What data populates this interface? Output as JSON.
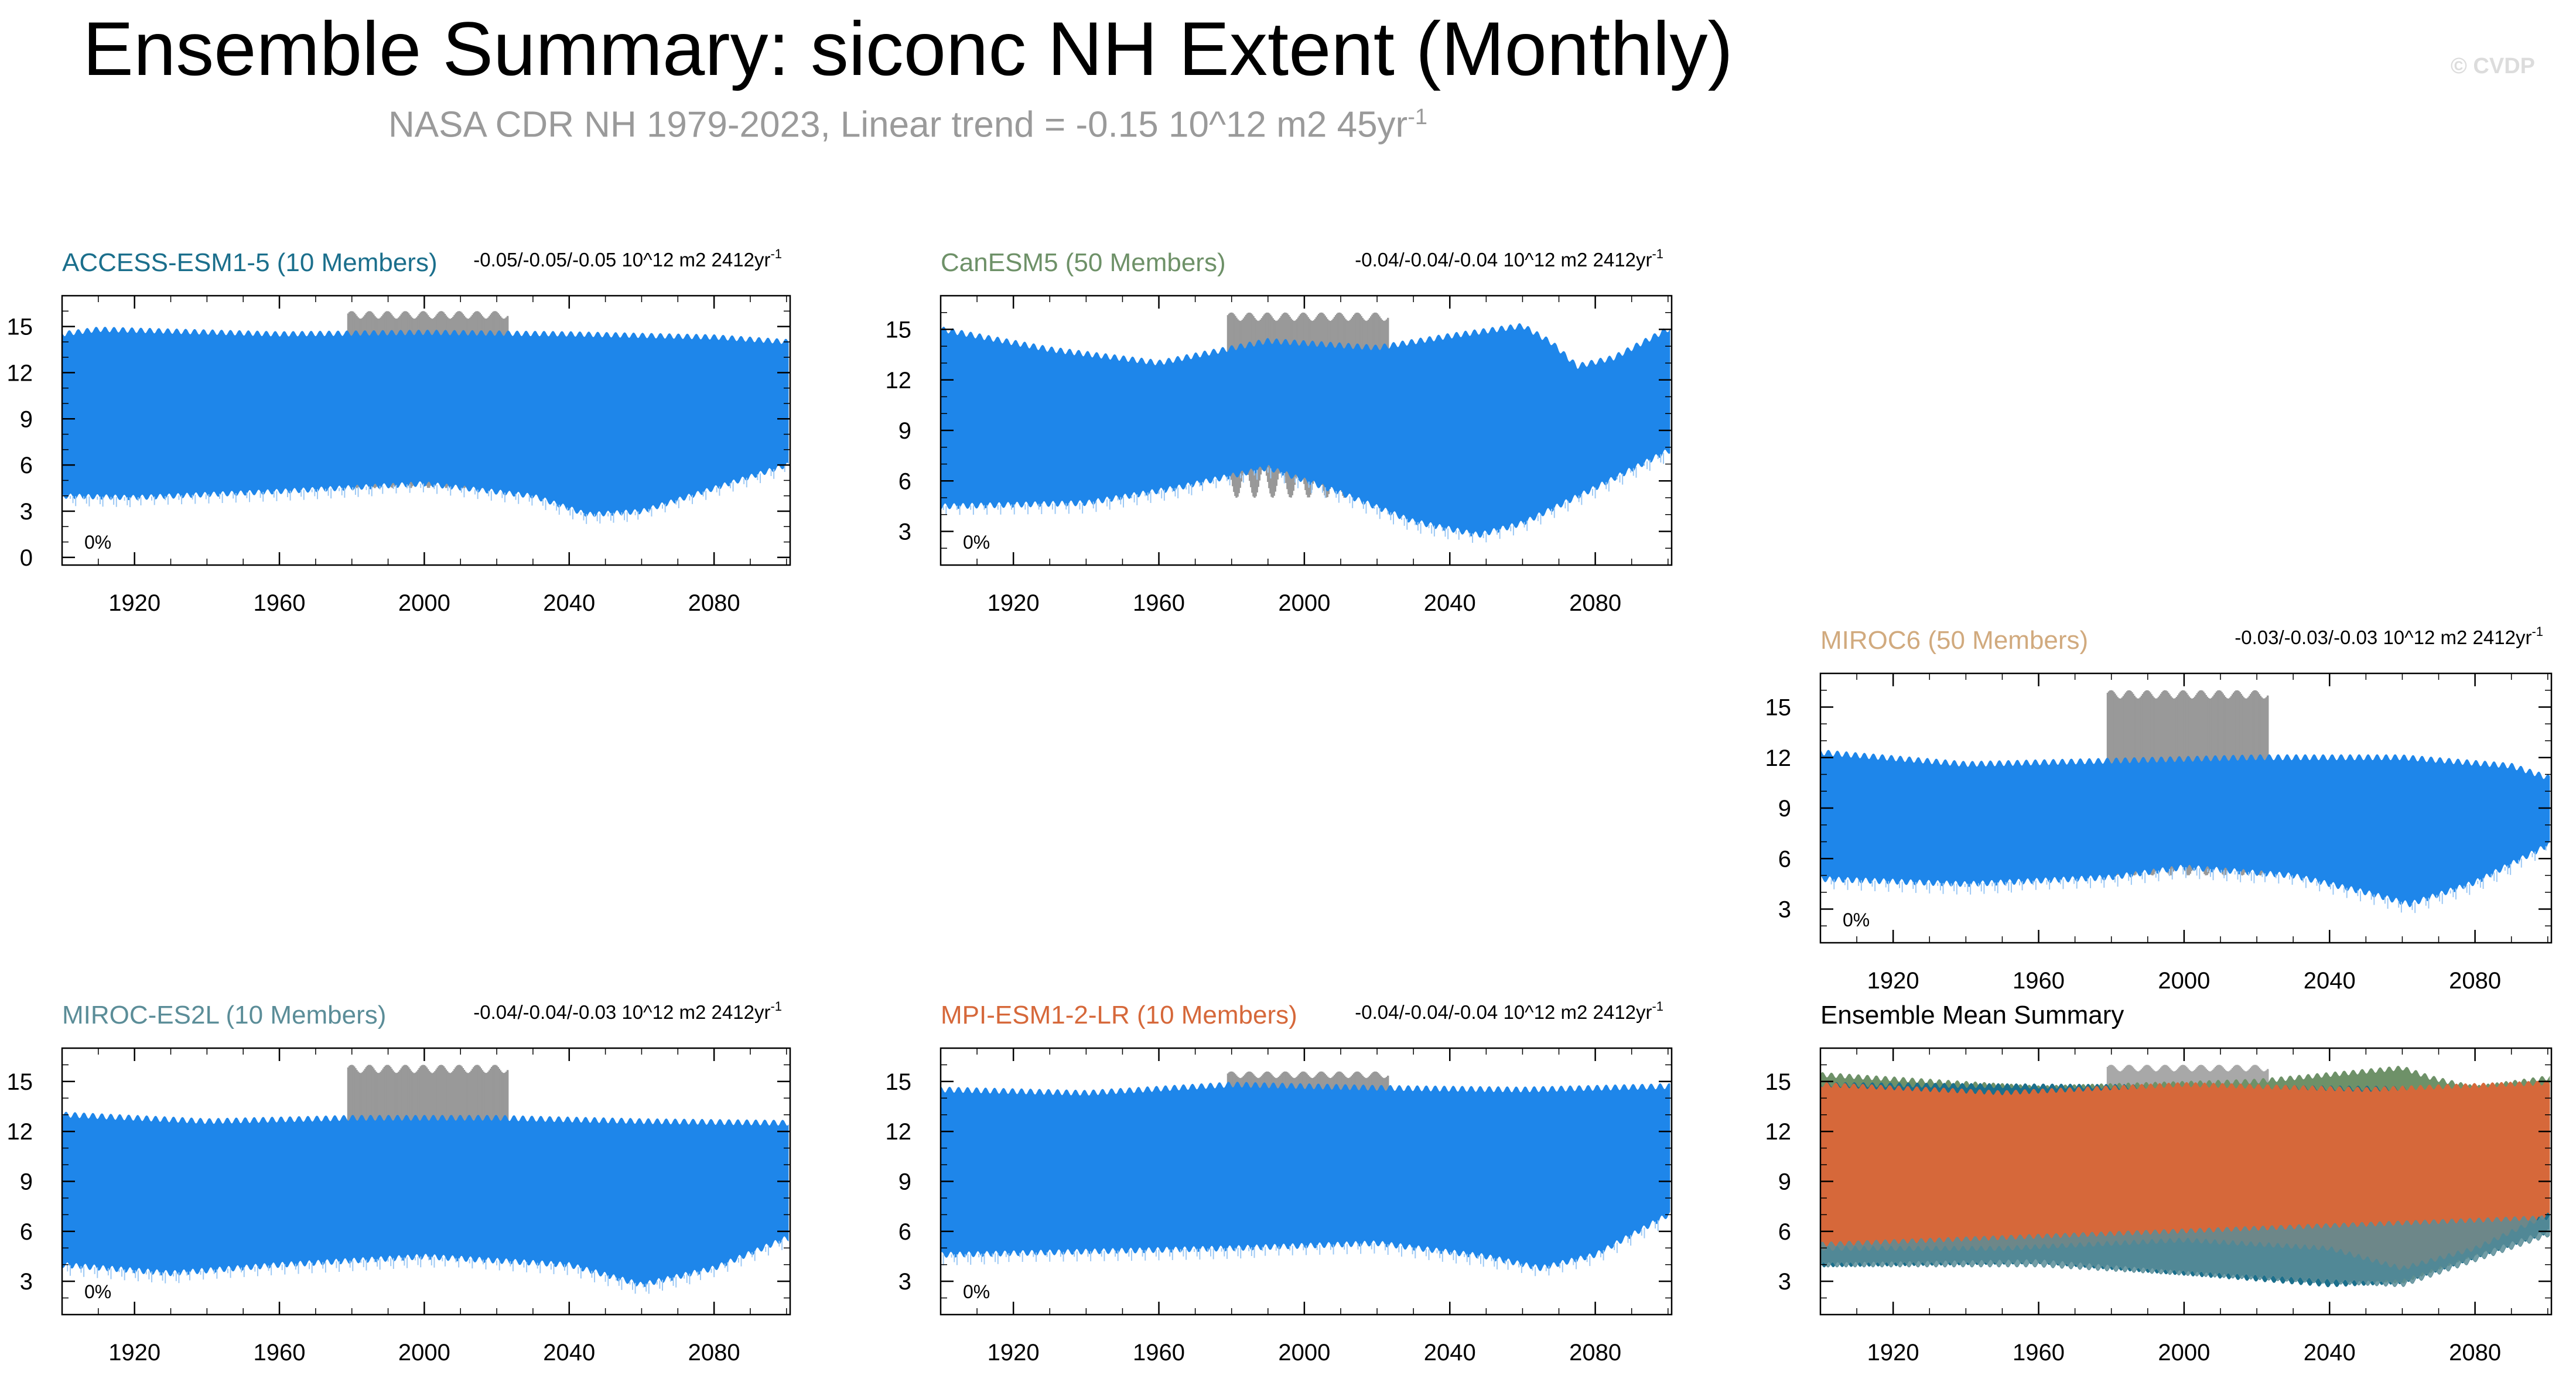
{
  "title": "Ensemble Summary: siconc NH Extent (Monthly)",
  "subtitle": "NASA CDR NH 1979-2023, Linear trend = -0.15 10^12 m2 45yr",
  "subtitle_exponent": "-1",
  "watermark": "© CVDP",
  "colors": {
    "blue": "#1e86ea",
    "obs": "#999999",
    "ACCESS-ESM1-5": "#1b6f8c",
    "CanESM5": "#6e9168",
    "MIROC6": "#d1aa7e",
    "MIROC-ES2L": "#5b8d98",
    "MPI-ESM1-2-LR": "#d6683a"
  },
  "chart_data": [
    {
      "type": "area",
      "name": "ACCESS-ESM1-5 (10 Members)",
      "title_color": "#1b6f8c",
      "trend_label": "-0.05/-0.05/-0.05 10^12 m2 2412yr",
      "trend_exponent": "-1",
      "pct_label": "0%",
      "xlim": [
        1900,
        2101
      ],
      "ylim": [
        -0.5,
        17
      ],
      "yticks": [
        0,
        3,
        6,
        9,
        12,
        15
      ],
      "xticks": [
        1920,
        1960,
        2000,
        2040,
        2080
      ],
      "obs_range": [
        1979,
        2023
      ],
      "obs_max": [
        15.5,
        16.0
      ],
      "obs_min": [
        6.0,
        4.5
      ],
      "model_max": {
        "x": [
          1900,
          1910,
          1960,
          2000,
          2040,
          2080,
          2100
        ],
        "y": [
          14.5,
          14.8,
          14.5,
          14.6,
          14.5,
          14.3,
          14.0
        ]
      },
      "model_min": {
        "x": [
          1900,
          1920,
          1960,
          2000,
          2030,
          2045,
          2060,
          2080,
          2100
        ],
        "y": [
          4.0,
          3.9,
          4.3,
          4.8,
          4.0,
          2.8,
          3.0,
          4.5,
          6.0
        ]
      }
    },
    {
      "type": "area",
      "name": "CanESM5 (50 Members)",
      "title_color": "#6e9168",
      "trend_label": "-0.04/-0.04/-0.04 10^12 m2 2412yr",
      "trend_exponent": "-1",
      "pct_label": "0%",
      "xlim": [
        1900,
        2101
      ],
      "ylim": [
        1,
        17
      ],
      "yticks": [
        3,
        6,
        9,
        12,
        15
      ],
      "xticks": [
        1920,
        1960,
        2000,
        2040,
        2080
      ],
      "obs_range": [
        1979,
        2023
      ],
      "obs_max": [
        15.5,
        16.0
      ],
      "obs_min": [
        6.8,
        5.0
      ],
      "model_max": {
        "x": [
          1900,
          1930,
          1960,
          1990,
          2020,
          2040,
          2060,
          2068,
          2075,
          2085,
          2100
        ],
        "y": [
          15.0,
          13.8,
          13.0,
          14.3,
          13.9,
          14.6,
          15.2,
          14.2,
          12.8,
          13.3,
          15.0
        ]
      },
      "model_min": {
        "x": [
          1900,
          1940,
          1965,
          1990,
          2010,
          2030,
          2048,
          2060,
          2080,
          2100
        ],
        "y": [
          4.5,
          4.7,
          5.6,
          6.8,
          5.3,
          3.6,
          2.8,
          3.5,
          5.6,
          7.8
        ]
      }
    },
    {
      "type": "area",
      "name": "MIROC6 (50 Members)",
      "title_color": "#d1aa7e",
      "trend_label": "-0.03/-0.03/-0.03 10^12 m2 2412yr",
      "trend_exponent": "-1",
      "pct_label": "0%",
      "xlim": [
        1900,
        2101
      ],
      "ylim": [
        1,
        17
      ],
      "yticks": [
        3,
        6,
        9,
        12,
        15
      ],
      "xticks": [
        1920,
        1960,
        2000,
        2040,
        2080
      ],
      "obs_range": [
        1979,
        2023
      ],
      "obs_max": [
        15.5,
        16.0
      ],
      "obs_min": [
        6.0,
        5.0
      ],
      "model_max": {
        "x": [
          1900,
          1940,
          1980,
          2020,
          2060,
          2090,
          2100
        ],
        "y": [
          12.3,
          11.6,
          11.8,
          12.0,
          12.0,
          11.5,
          10.8
        ]
      },
      "model_min": {
        "x": [
          1900,
          1940,
          1980,
          2000,
          2030,
          2050,
          2062,
          2080,
          2100
        ],
        "y": [
          4.8,
          4.5,
          4.9,
          5.5,
          5.0,
          4.0,
          3.3,
          4.6,
          6.8
        ]
      }
    },
    {
      "type": "area",
      "name": "MIROC-ES2L (10 Members)",
      "title_color": "#5b8d98",
      "trend_label": "-0.04/-0.04/-0.03 10^12 m2 2412yr",
      "trend_exponent": "-1",
      "pct_label": "0%",
      "xlim": [
        1900,
        2101
      ],
      "ylim": [
        1,
        17
      ],
      "yticks": [
        3,
        6,
        9,
        12,
        15
      ],
      "xticks": [
        1920,
        1960,
        2000,
        2040,
        2080
      ],
      "obs_range": [
        1979,
        2023
      ],
      "obs_max": [
        15.5,
        16.0
      ],
      "obs_min": [
        6.0,
        5.0
      ],
      "model_max": {
        "x": [
          1900,
          1940,
          1980,
          2020,
          2060,
          2100
        ],
        "y": [
          13.0,
          12.6,
          12.8,
          12.8,
          12.6,
          12.5
        ]
      },
      "model_min": {
        "x": [
          1900,
          1930,
          1960,
          2000,
          2040,
          2060,
          2080,
          2100
        ],
        "y": [
          4.0,
          3.5,
          4.0,
          4.5,
          4.0,
          2.8,
          3.8,
          5.6
        ]
      }
    },
    {
      "type": "area",
      "name": "MPI-ESM1-2-LR (10 Members)",
      "title_color": "#d6683a",
      "trend_label": "-0.04/-0.04/-0.04 10^12 m2 2412yr",
      "trend_exponent": "-1",
      "pct_label": "0%",
      "xlim": [
        1900,
        2101
      ],
      "ylim": [
        1,
        17
      ],
      "yticks": [
        3,
        6,
        9,
        12,
        15
      ],
      "xticks": [
        1920,
        1960,
        2000,
        2040,
        2080
      ],
      "obs_range": [
        1979,
        2023
      ],
      "obs_max": [
        15.2,
        15.6
      ],
      "obs_min": [
        14.5,
        14.3
      ],
      "model_max": {
        "x": [
          1900,
          1940,
          1980,
          2020,
          2060,
          2100
        ],
        "y": [
          14.5,
          14.3,
          14.8,
          14.6,
          14.5,
          14.7
        ]
      },
      "model_min": {
        "x": [
          1900,
          1940,
          1980,
          2020,
          2050,
          2065,
          2080,
          2100
        ],
        "y": [
          4.6,
          4.8,
          5.0,
          5.3,
          4.5,
          3.8,
          4.6,
          7.0
        ]
      }
    },
    {
      "type": "area",
      "name": "Ensemble Mean Summary",
      "title_color": "#000000",
      "trend_label": "",
      "trend_exponent": "",
      "pct_label": "",
      "xlim": [
        1900,
        2101
      ],
      "ylim": [
        1,
        17
      ],
      "yticks": [
        3,
        6,
        9,
        12,
        15
      ],
      "xticks": [
        1920,
        1960,
        2000,
        2040,
        2080
      ],
      "obs_range": [
        1979,
        2023
      ],
      "obs_max": [
        15.6,
        16.0
      ],
      "obs_min": [
        14.8,
        14.6
      ],
      "underlay": [
        {
          "name": "CanESM5",
          "color": "#6e9168",
          "max": {
            "x": [
              1900,
              1960,
              2020,
              2060,
              2068,
              2080,
              2100
            ],
            "y": [
              15.4,
              14.6,
              15.0,
              15.8,
              15.2,
              14.6,
              15.2
            ]
          },
          "min": {
            "x": [
              1900,
              2000,
              2040,
              2060,
              2100
            ],
            "y": [
              4.4,
              5.0,
              3.4,
              3.0,
              6.4
            ]
          }
        },
        {
          "name": "ACCESS-ESM1-5",
          "color": "#1b6f8c",
          "max": {
            "x": [
              1900,
              2100
            ],
            "y": [
              14.8,
              14.5
            ]
          },
          "min": {
            "x": [
              1900,
              1960,
              2040,
              2060,
              2100
            ],
            "y": [
              4.0,
              4.2,
              2.8,
              3.0,
              6.0
            ]
          }
        }
      ],
      "series": [
        {
          "name": "MPI-ESM1-2-LR",
          "color": "#d6683a",
          "max": {
            "x": [
              1900,
              1950,
              2000,
              2050,
              2100
            ],
            "y": [
              14.8,
              14.3,
              14.8,
              14.5,
              14.9
            ]
          },
          "min": {
            "x": [
              1900,
              1950,
              2000,
              2040,
              2060,
              2080,
              2100
            ],
            "y": [
              5.0,
              5.0,
              5.5,
              5.0,
              3.8,
              5.0,
              7.0
            ]
          }
        }
      ],
      "overlay": [
        {
          "name": "MIROC-ES2L",
          "color": "#5b8d98",
          "max": {
            "x": [
              1900,
              2100
            ],
            "y": [
              5.2,
              6.8
            ]
          },
          "min": {
            "x": [
              1900,
              1960,
              2040,
              2060,
              2100
            ],
            "y": [
              4.0,
              4.0,
              3.0,
              2.8,
              5.8
            ]
          }
        }
      ]
    }
  ]
}
